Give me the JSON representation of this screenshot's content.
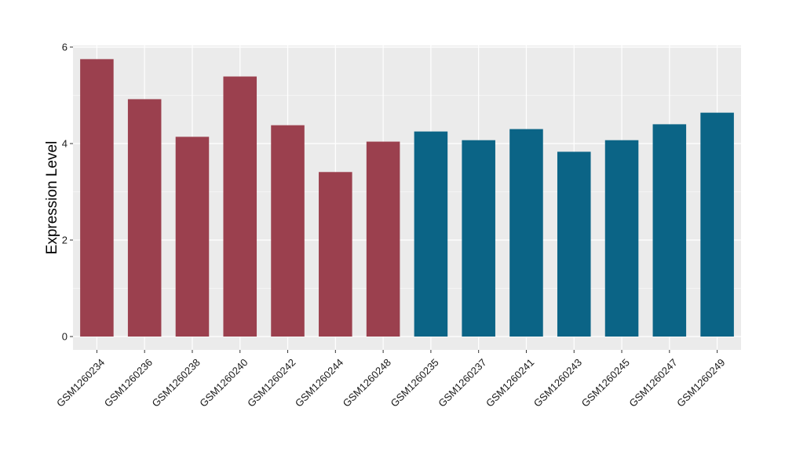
{
  "chart_data": {
    "type": "bar",
    "title": "",
    "xlabel": "",
    "ylabel": "Expression Level",
    "ylim": [
      0,
      6
    ],
    "yticks": [
      0,
      2,
      4,
      6
    ],
    "grid": true,
    "legend": "none",
    "colors": {
      "group_a": "#9b404e",
      "group_b": "#0b6486",
      "panel_bg": "#ebebeb",
      "grid": "#ffffff"
    },
    "categories": [
      "GSM1260234",
      "GSM1260236",
      "GSM1260238",
      "GSM1260240",
      "GSM1260242",
      "GSM1260244",
      "GSM1260248",
      "GSM1260235",
      "GSM1260237",
      "GSM1260241",
      "GSM1260243",
      "GSM1260245",
      "GSM1260247",
      "GSM1260249"
    ],
    "values": [
      5.75,
      4.92,
      4.14,
      5.39,
      4.38,
      3.41,
      4.04,
      4.25,
      4.07,
      4.3,
      3.83,
      4.07,
      4.4,
      4.64
    ],
    "groups": [
      "group_a",
      "group_a",
      "group_a",
      "group_a",
      "group_a",
      "group_a",
      "group_a",
      "group_b",
      "group_b",
      "group_b",
      "group_b",
      "group_b",
      "group_b",
      "group_b"
    ]
  }
}
